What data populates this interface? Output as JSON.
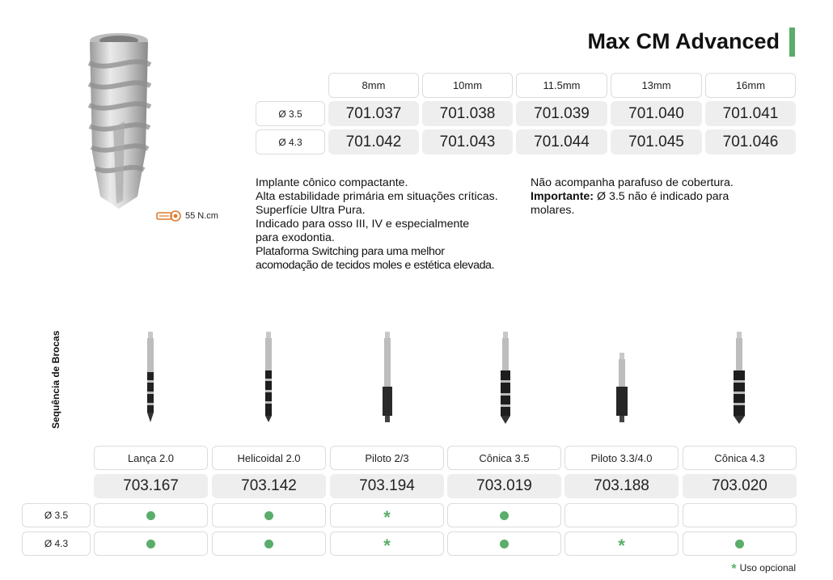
{
  "header": {
    "title": "Max CM Advanced",
    "accent_color": "#5aad6a"
  },
  "implant": {
    "torque": "55 N.cm",
    "lengths": [
      "8mm",
      "10mm",
      "11.5mm",
      "13mm",
      "16mm"
    ],
    "rows": [
      {
        "diameter": "Ø 3.5",
        "codes": [
          "701.037",
          "701.038",
          "701.039",
          "701.040",
          "701.041"
        ]
      },
      {
        "diameter": "Ø 4.3",
        "codes": [
          "701.042",
          "701.043",
          "701.044",
          "701.045",
          "701.046"
        ]
      }
    ]
  },
  "description": {
    "left_lines": [
      "Implante cônico compactante.",
      "Alta estabilidade primária em situações críticas.",
      "Superfície Ultra Pura.",
      "Indicado para osso III, IV e especialmente",
      "para exodontia.",
      "Plataforma Switching para uma melhor",
      "acomodação de tecidos moles e estética elevada."
    ],
    "right_line1": "Não acompanha parafuso de cobertura.",
    "right_bold": "Importante:",
    "right_line2_rest": " Ø 3.5 não é indicado para",
    "right_line3": "molares."
  },
  "drills": {
    "section_label": "Sequência de Brocas",
    "names": [
      "Lança 2.0",
      "Helicoidal 2.0",
      "Piloto 2/3",
      "Cônica 3.5",
      "Piloto 3.3/4.0",
      "Cônica 4.3"
    ],
    "codes": [
      "703.167",
      "703.142",
      "703.194",
      "703.019",
      "703.188",
      "703.020"
    ],
    "usage": [
      {
        "diameter": "Ø 3.5",
        "marks": [
          "dot",
          "dot",
          "star",
          "dot",
          "none",
          "none"
        ]
      },
      {
        "diameter": "Ø 4.3",
        "marks": [
          "dot",
          "dot",
          "star",
          "dot",
          "star",
          "dot"
        ]
      }
    ],
    "legend_symbol": "*",
    "legend_text": "Uso opcional"
  }
}
